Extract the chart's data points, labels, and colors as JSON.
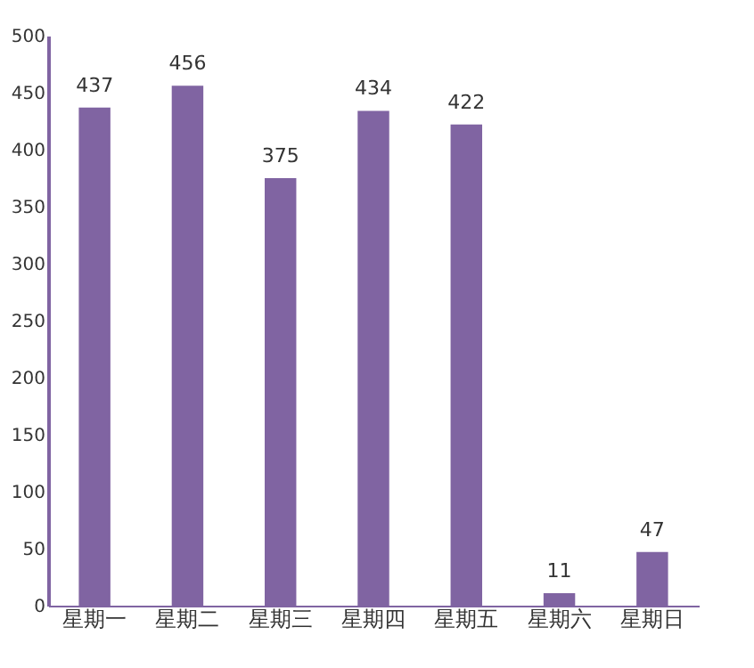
{
  "chart_data": {
    "type": "bar",
    "categories": [
      "星期一",
      "星期二",
      "星期三",
      "星期四",
      "星期五",
      "星期六",
      "星期日"
    ],
    "values": [
      437,
      456,
      375,
      434,
      422,
      11,
      47
    ],
    "color": "#8064a2",
    "ylim": [
      0,
      500
    ],
    "yticks": [
      0,
      50,
      100,
      150,
      200,
      250,
      300,
      350,
      400,
      450,
      500
    ],
    "grid": false,
    "data_labels": true
  }
}
